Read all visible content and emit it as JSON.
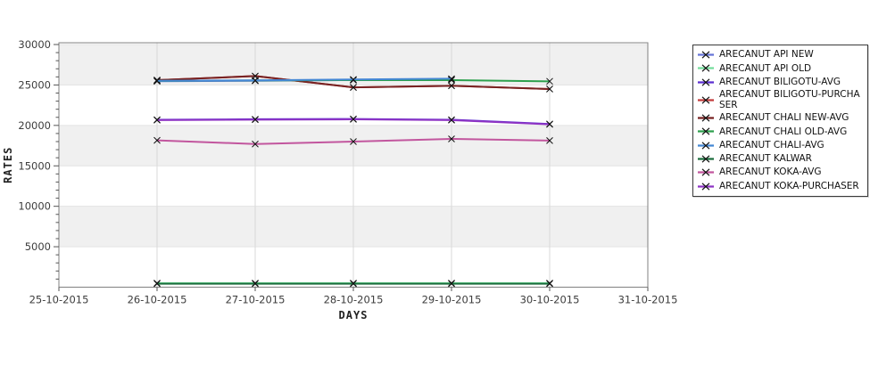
{
  "chart_data": {
    "type": "line",
    "title": "",
    "xlabel": "DAYS",
    "ylabel": "RATES",
    "x_ticks": [
      "25-10-2015",
      "26-10-2015",
      "27-10-2015",
      "28-10-2015",
      "29-10-2015",
      "30-10-2015",
      "31-10-2015"
    ],
    "y_ticks": [
      5000,
      10000,
      15000,
      20000,
      25000,
      30000
    ],
    "ylim": [
      0,
      30000
    ],
    "grid": "on",
    "legend_position": "right",
    "marker": "x",
    "marker_color": "#111111",
    "band_colors": {
      "gray": "#f0f0f0",
      "white": "#ffffff"
    },
    "frame_color": "#808080",
    "gridline_color": "#d9d9d9",
    "series": [
      {
        "name": "ARECANUT API NEW",
        "color": "#6674d8",
        "x": [
          "26-10-2015",
          "27-10-2015",
          "28-10-2015",
          "29-10-2015"
        ],
        "values": [
          25460,
          25510,
          25610,
          25710
        ]
      },
      {
        "name": "ARECANUT API OLD",
        "color": "#74dd9c",
        "x": [
          "26-10-2015",
          "27-10-2015",
          "28-10-2015",
          "29-10-2015",
          "30-10-2015"
        ],
        "values": [
          500,
          500,
          500,
          500,
          500
        ]
      },
      {
        "name": "ARECANUT BILIGOTU-AVG",
        "color": "#5c2fd1",
        "x": [
          "26-10-2015",
          "27-10-2015",
          "28-10-2015",
          "29-10-2015",
          "30-10-2015"
        ],
        "values": [
          20700,
          20760,
          20800,
          20700,
          20180
        ]
      },
      {
        "name": "ARECANUT BILIGOTU-PURCHASER",
        "color": "#c23b3b",
        "x": [
          "26-10-2015",
          "27-10-2015",
          "28-10-2015",
          "29-10-2015",
          "30-10-2015"
        ],
        "values": [
          25600,
          26100,
          24700,
          24900,
          24500
        ]
      },
      {
        "name": "ARECANUT CHALI NEW-AVG",
        "color": "#772222",
        "x": [
          "26-10-2015",
          "27-10-2015",
          "28-10-2015",
          "29-10-2015",
          "30-10-2015"
        ],
        "values": [
          25600,
          26100,
          24700,
          24900,
          24500
        ]
      },
      {
        "name": "ARECANUT CHALI OLD-AVG",
        "color": "#2da04d",
        "x": [
          "26-10-2015",
          "27-10-2015",
          "28-10-2015",
          "29-10-2015",
          "30-10-2015"
        ],
        "values": [
          25500,
          25550,
          25600,
          25600,
          25450
        ]
      },
      {
        "name": "ARECANUT CHALI-AVG",
        "color": "#4487d4",
        "x": [
          "26-10-2015",
          "27-10-2015",
          "28-10-2015",
          "29-10-2015"
        ],
        "values": [
          25520,
          25570,
          25680,
          25770
        ]
      },
      {
        "name": "ARECANUT KALWAR",
        "color": "#1c6e3e",
        "x": [
          "26-10-2015",
          "27-10-2015",
          "28-10-2015",
          "29-10-2015",
          "30-10-2015"
        ],
        "values": [
          430,
          430,
          430,
          430,
          430
        ]
      },
      {
        "name": "ARECANUT KOKA-AVG",
        "color": "#c2569e",
        "x": [
          "26-10-2015",
          "27-10-2015",
          "28-10-2015",
          "29-10-2015",
          "30-10-2015"
        ],
        "values": [
          18150,
          17700,
          18000,
          18330,
          18120
        ]
      },
      {
        "name": "ARECANUT KOKA-PURCHASER",
        "color": "#8d33c4",
        "x": [
          "26-10-2015",
          "27-10-2015",
          "28-10-2015",
          "29-10-2015",
          "30-10-2015"
        ],
        "values": [
          20650,
          20710,
          20750,
          20650,
          20130
        ]
      }
    ]
  }
}
